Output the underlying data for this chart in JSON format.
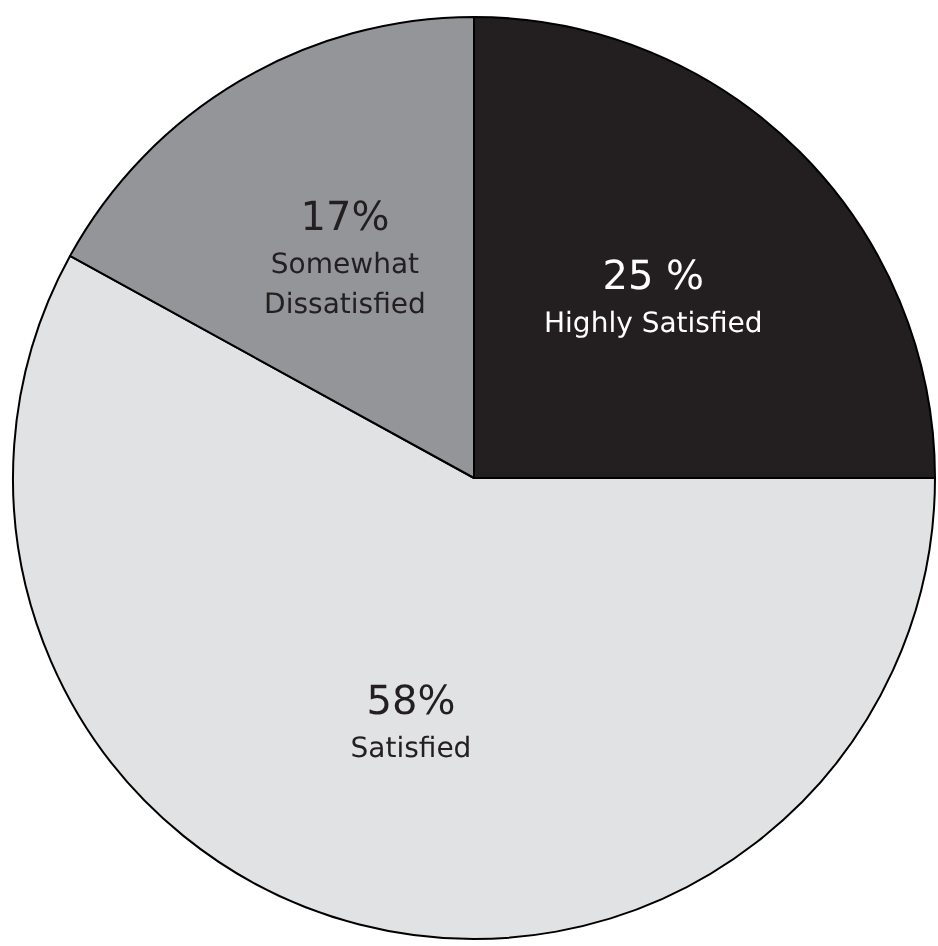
{
  "chart_data": {
    "type": "pie",
    "categories": [
      "Highly Satisfied",
      "Satisfied",
      "Somewhat Dissatisfied"
    ],
    "values": [
      25,
      58,
      17
    ],
    "colors": [
      "#231f20",
      "#e1e2e3",
      "#939598"
    ],
    "value_labels": [
      "25 %",
      "58%",
      "17%"
    ]
  }
}
